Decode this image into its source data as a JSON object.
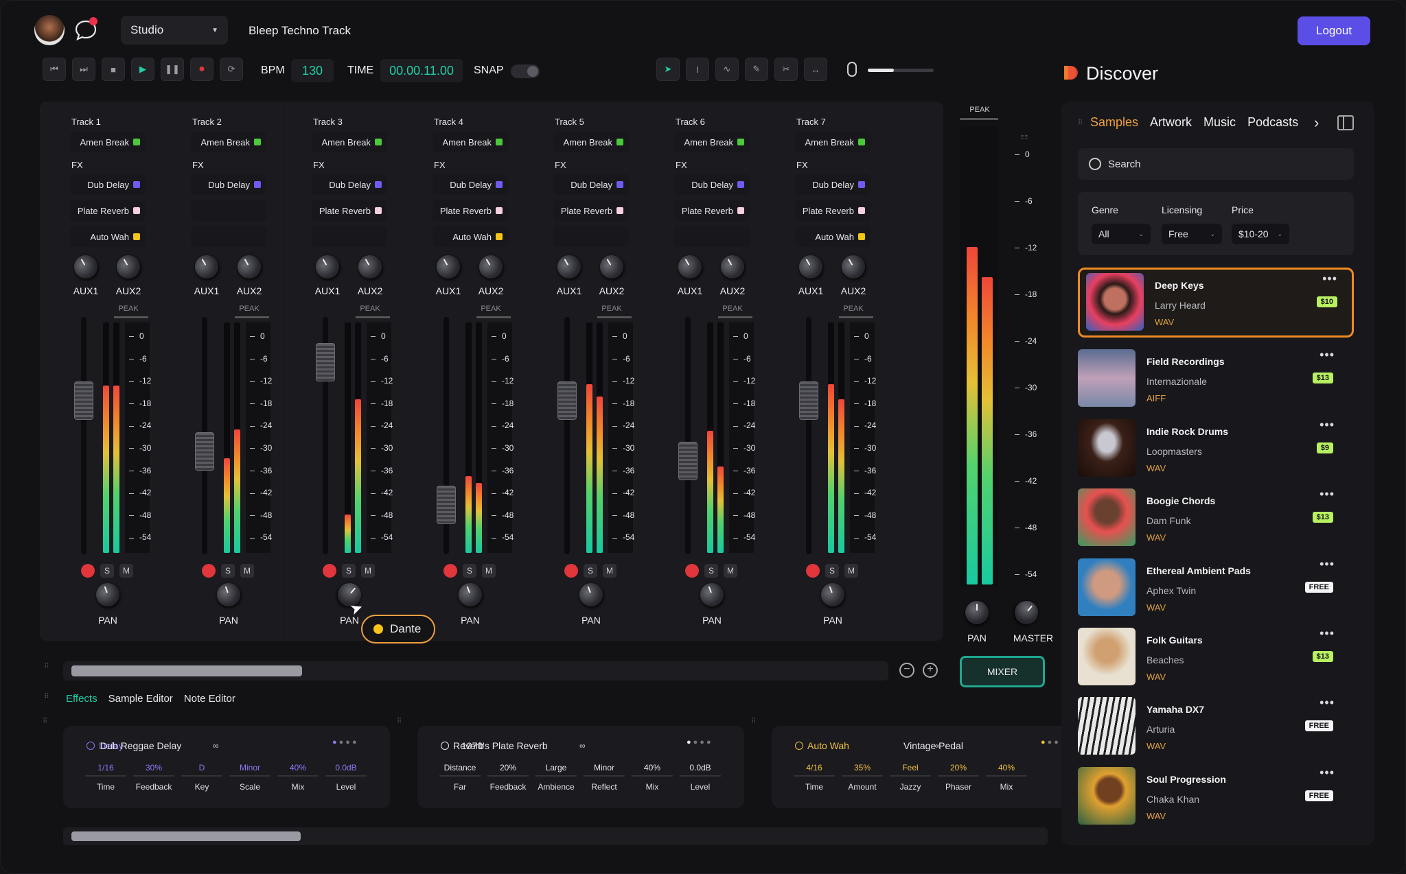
{
  "header": {
    "workspace": "Studio",
    "project": "Bleep Techno Track",
    "logout": "Logout"
  },
  "transport": {
    "bpm_label": "BPM",
    "bpm": "130",
    "time_label": "TIME",
    "time": "00.00.11.00",
    "snap_label": "SNAP"
  },
  "discover": {
    "title": "Discover",
    "tabs": [
      "Samples",
      "Artwork",
      "Music",
      "Podcasts"
    ],
    "search_placeholder": "Search",
    "filters": {
      "genre_label": "Genre",
      "genre": "All",
      "licensing_label": "Licensing",
      "licensing": "Free",
      "price_label": "Price",
      "price": "$10-20"
    }
  },
  "tracks": [
    {
      "name": "Track 1",
      "sample": "Amen Break",
      "fx": [
        "Dub Delay",
        "Plate Reverb",
        "Auto Wah"
      ]
    },
    {
      "name": "Track 2",
      "sample": "Amen Break",
      "fx": [
        "Dub Delay",
        "",
        ""
      ]
    },
    {
      "name": "Track 3",
      "sample": "Amen Break",
      "fx": [
        "Dub Delay",
        "Plate Reverb",
        ""
      ]
    },
    {
      "name": "Track 4",
      "sample": "Amen Break",
      "fx": [
        "Dub Delay",
        "Plate Reverb",
        "Auto Wah"
      ]
    },
    {
      "name": "Track 5",
      "sample": "Amen Break",
      "fx": [
        "Dub Delay",
        "Plate Reverb",
        ""
      ]
    },
    {
      "name": "Track 6",
      "sample": "Amen Break",
      "fx": [
        "Dub Delay",
        "Plate Reverb",
        ""
      ]
    },
    {
      "name": "Track 7",
      "sample": "Amen Break",
      "fx": [
        "Dub Delay",
        "Plate Reverb",
        "Auto Wah"
      ]
    }
  ],
  "strip_labels": {
    "fx": "FX",
    "aux1": "AUX1",
    "aux2": "AUX2",
    "peak": "PEAK",
    "pan": "PAN",
    "solo": "S",
    "mute": "M",
    "master": "MASTER",
    "mixer": "MIXER"
  },
  "scale": [
    "0",
    "-6",
    "-12",
    "-18",
    "-24",
    "-30",
    "-36",
    "-42",
    "-48",
    "-54"
  ],
  "cursor_tag": "Dante",
  "editor_tabs": [
    "Effects",
    "Sample Editor",
    "Note Editor"
  ],
  "effects": [
    {
      "type": "Delay",
      "name": "Dub Reggae Delay",
      "color": "#8a7cf0",
      "params": [
        [
          "1/16",
          "Time"
        ],
        [
          "30%",
          "Feedback"
        ],
        [
          "D",
          "Key"
        ],
        [
          "Minor",
          "Scale"
        ],
        [
          "40%",
          "Mix"
        ],
        [
          "0.0dB",
          "Level"
        ]
      ]
    },
    {
      "type": "Reverb",
      "name": "1970's Plate Reverb",
      "color": "#e8e8ec",
      "params": [
        [
          "Distance",
          "Far"
        ],
        [
          "20%",
          "Feedback"
        ],
        [
          "Large",
          "Ambience"
        ],
        [
          "Minor",
          "Reflect"
        ],
        [
          "40%",
          "Mix"
        ],
        [
          "0.0dB",
          "Level"
        ]
      ]
    },
    {
      "type": "Auto Wah",
      "name": "Vintage Pedal",
      "color": "#f0c040",
      "params": [
        [
          "4/16",
          "Time"
        ],
        [
          "35%",
          "Amount"
        ],
        [
          "Feel",
          "Jazzy"
        ],
        [
          "20%",
          "Phaser"
        ],
        [
          "40%",
          "Mix"
        ]
      ]
    }
  ],
  "samples": [
    {
      "title": "Deep Keys",
      "artist": "Larry Heard",
      "format": "WAV",
      "price": "$10"
    },
    {
      "title": "Field Recordings",
      "artist": "Internazionale",
      "format": "AIFF",
      "price": "$13"
    },
    {
      "title": "Indie Rock Drums",
      "artist": "Loopmasters",
      "format": "WAV",
      "price": "$9"
    },
    {
      "title": "Boogie Chords",
      "artist": "Dam Funk",
      "format": "WAV",
      "price": "$13"
    },
    {
      "title": "Ethereal Ambient Pads",
      "artist": "Aphex Twin",
      "format": "WAV",
      "price": "FREE"
    },
    {
      "title": "Folk Guitars",
      "artist": "Beaches",
      "format": "WAV",
      "price": "$13"
    },
    {
      "title": "Yamaha DX7",
      "artist": "Arturia",
      "format": "WAV",
      "price": "FREE"
    },
    {
      "title": "Soul Progression",
      "artist": "Chaka Khan",
      "format": "WAV",
      "price": "FREE"
    }
  ],
  "colors": {
    "accent_teal": "#1fd1a5",
    "logout": "#5b4ee6",
    "selected_card": "#f08a24"
  }
}
